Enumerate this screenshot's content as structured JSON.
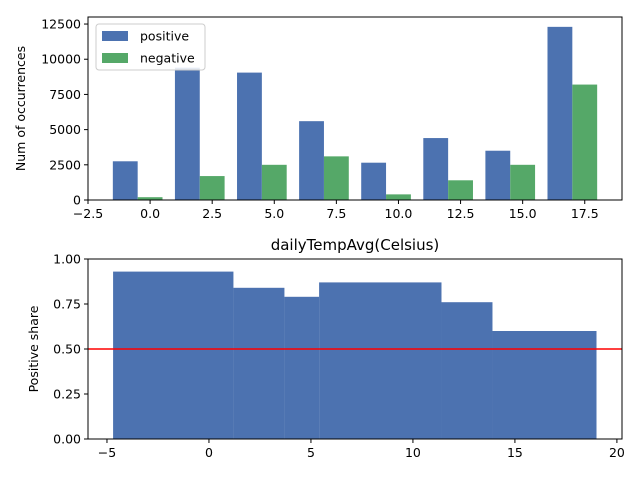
{
  "chart_data": [
    {
      "type": "bar",
      "ylabel": "Num of occurrences",
      "series": [
        {
          "name": "positive",
          "color": "#4c72b0",
          "x": [
            -1,
            1.5,
            4,
            6.5,
            9,
            11.5,
            14,
            16.5
          ],
          "values": [
            2750,
            9400,
            9050,
            5600,
            2650,
            4400,
            3500,
            12300
          ]
        },
        {
          "name": "negative",
          "color": "#55a868",
          "x": [
            0,
            2.5,
            5,
            7.5,
            10,
            12.5,
            15,
            17.5
          ],
          "values": [
            200,
            1700,
            2500,
            3100,
            400,
            1400,
            2500,
            8200
          ]
        }
      ],
      "bar_width": 1,
      "xlim": [
        -2.5,
        19.0
      ],
      "ylim": [
        0,
        13000
      ],
      "xticks": [
        {
          "value": -2.5,
          "label": "−2.5"
        },
        {
          "value": 0,
          "label": "0.0"
        },
        2.5,
        {
          "value": 5,
          "label": "5.0"
        },
        7.5,
        {
          "value": 10,
          "label": "10.0"
        },
        12.5,
        {
          "value": 15,
          "label": "15.0"
        },
        17.5
      ],
      "yticks": [
        0,
        2500,
        5000,
        7500,
        10000,
        12500
      ],
      "legend": "upper left"
    },
    {
      "type": "histogram",
      "title": "dailyTempAvg(Celsius)",
      "ylabel": "Positive share",
      "bins": [
        -4.7,
        1.2,
        3.7,
        5.4,
        11.4,
        13.9,
        19.0
      ],
      "values": [
        0.93,
        0.84,
        0.79,
        0.87,
        0.76,
        0.6
      ],
      "color": "#4c72b0",
      "reference_line": {
        "value": 0.5,
        "color": "#ff0000"
      },
      "xlim": [
        -5.93,
        20.25
      ],
      "ylim": [
        0,
        1
      ],
      "xticks": [
        {
          "value": -5,
          "label": "−5"
        },
        0,
        5,
        10,
        15,
        20
      ],
      "yticks": [
        {
          "value": 0,
          "label": "0.00"
        },
        {
          "value": 0.25,
          "label": "0.25"
        },
        {
          "value": 0.5,
          "label": "0.50"
        },
        {
          "value": 0.75,
          "label": "0.75"
        },
        {
          "value": 1,
          "label": "1.00"
        }
      ]
    }
  ]
}
